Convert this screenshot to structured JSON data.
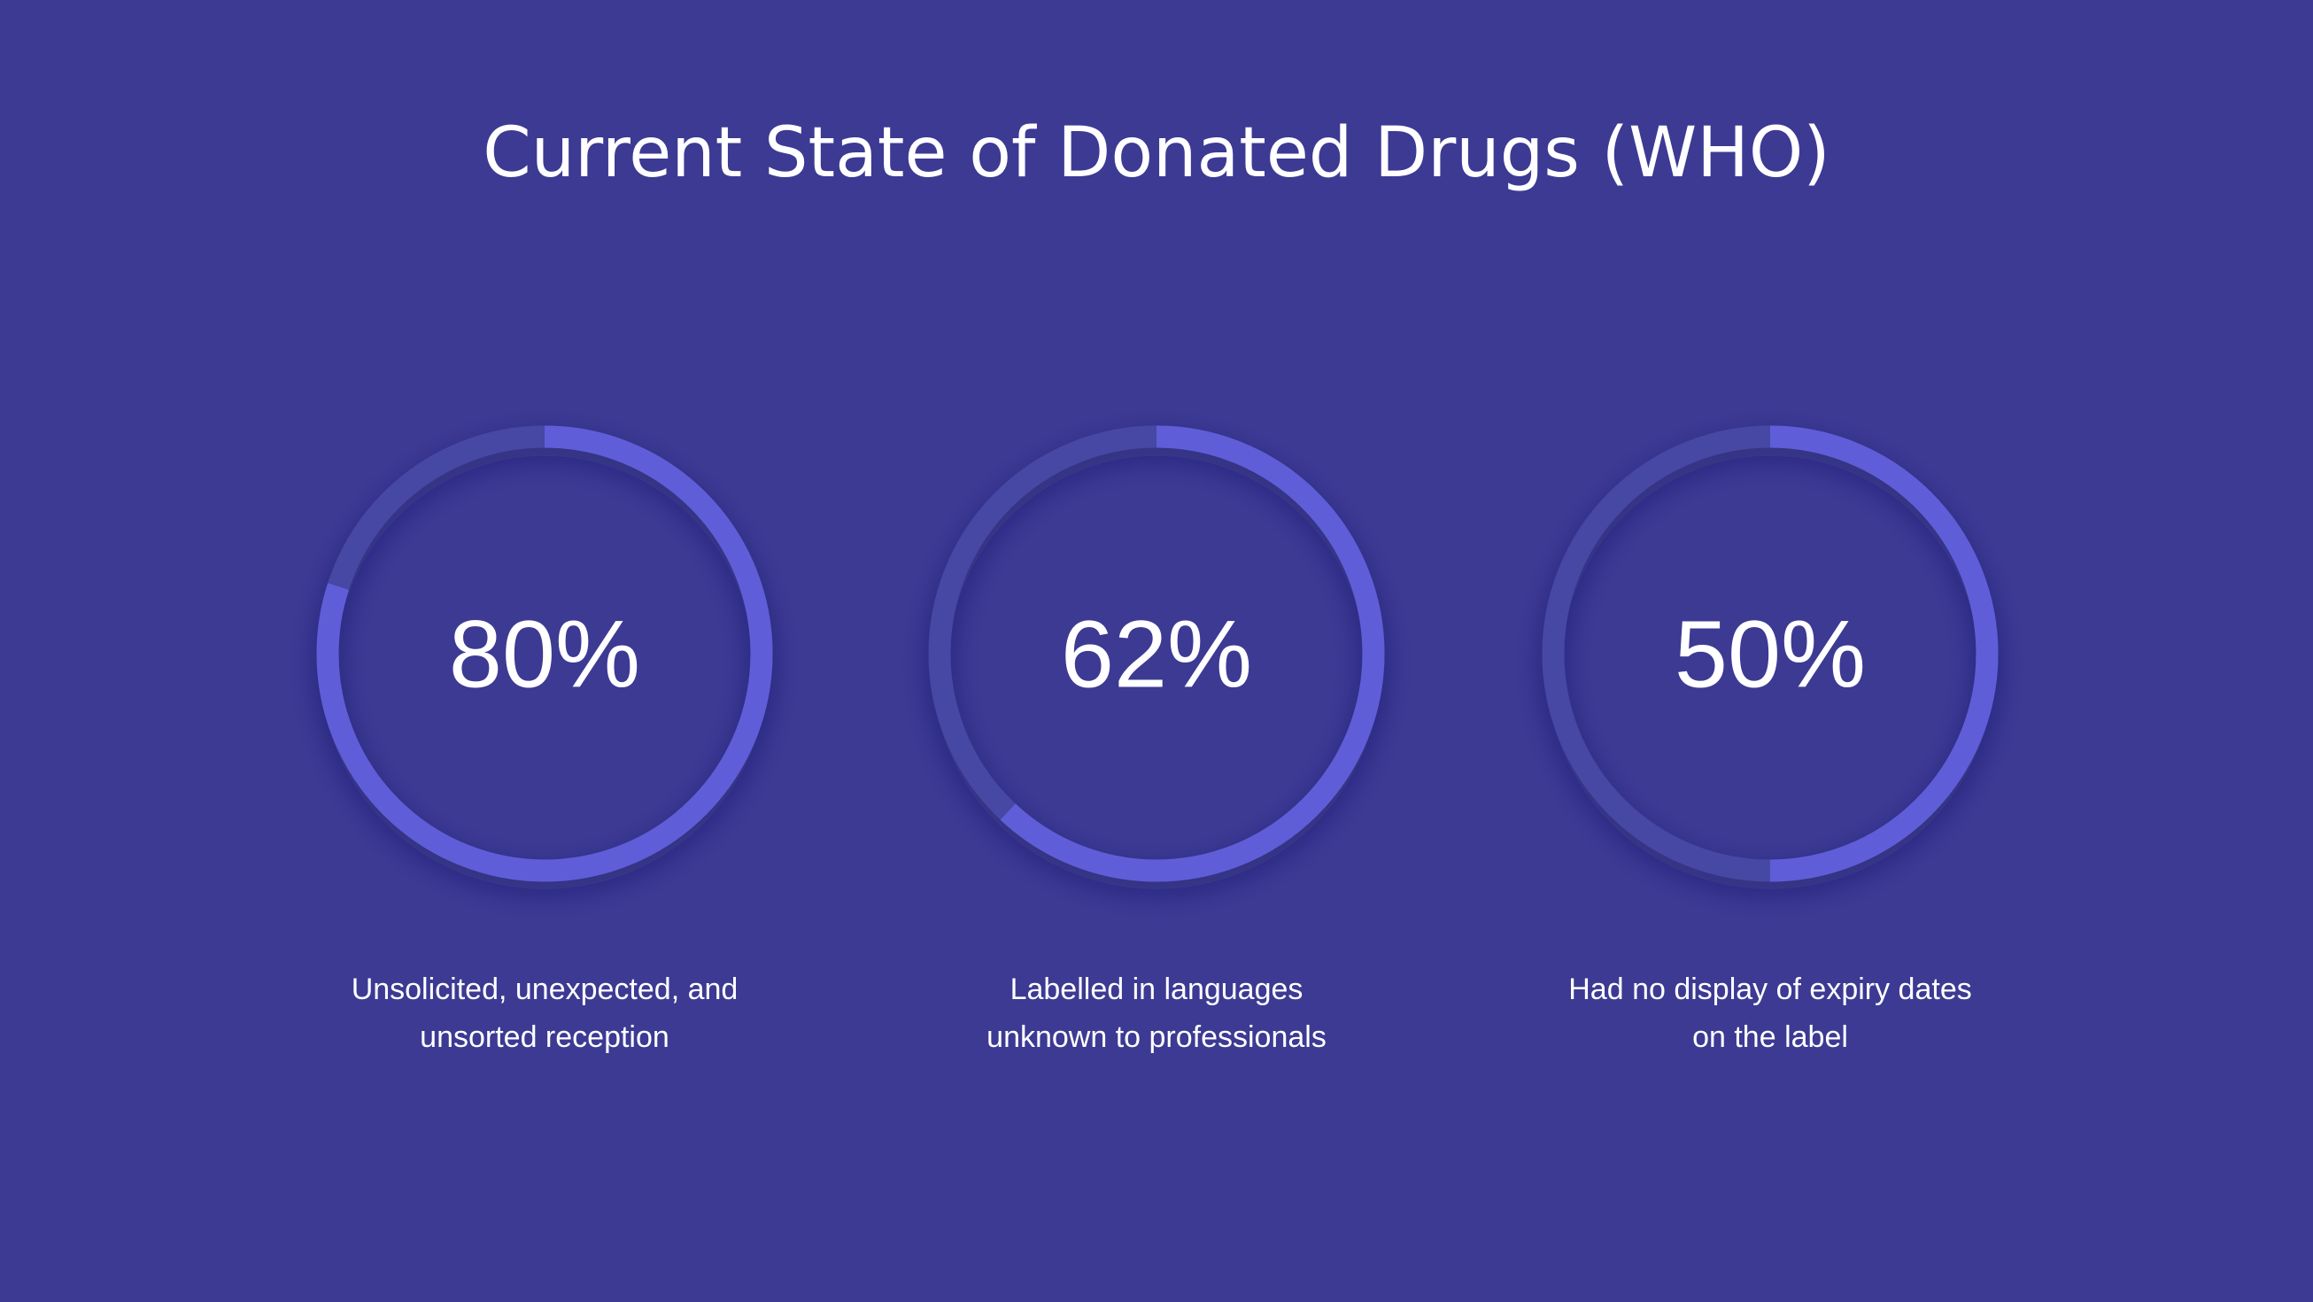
{
  "chart_data": {
    "type": "progress-ring",
    "title": "Current State of Donated Drugs (WHO)",
    "categories": [
      "Unsolicited, unexpected, and unsorted reception",
      "Labelled in languages unknown to professionals",
      "Had no display of expiry dates on the label"
    ],
    "values": [
      80,
      62,
      50
    ],
    "value_labels": [
      "80%",
      "62%",
      "50%"
    ],
    "ylim": [
      0,
      100
    ],
    "color": "#5f5ed8",
    "track_color": "#4746a4",
    "background": "#3c3a93"
  }
}
